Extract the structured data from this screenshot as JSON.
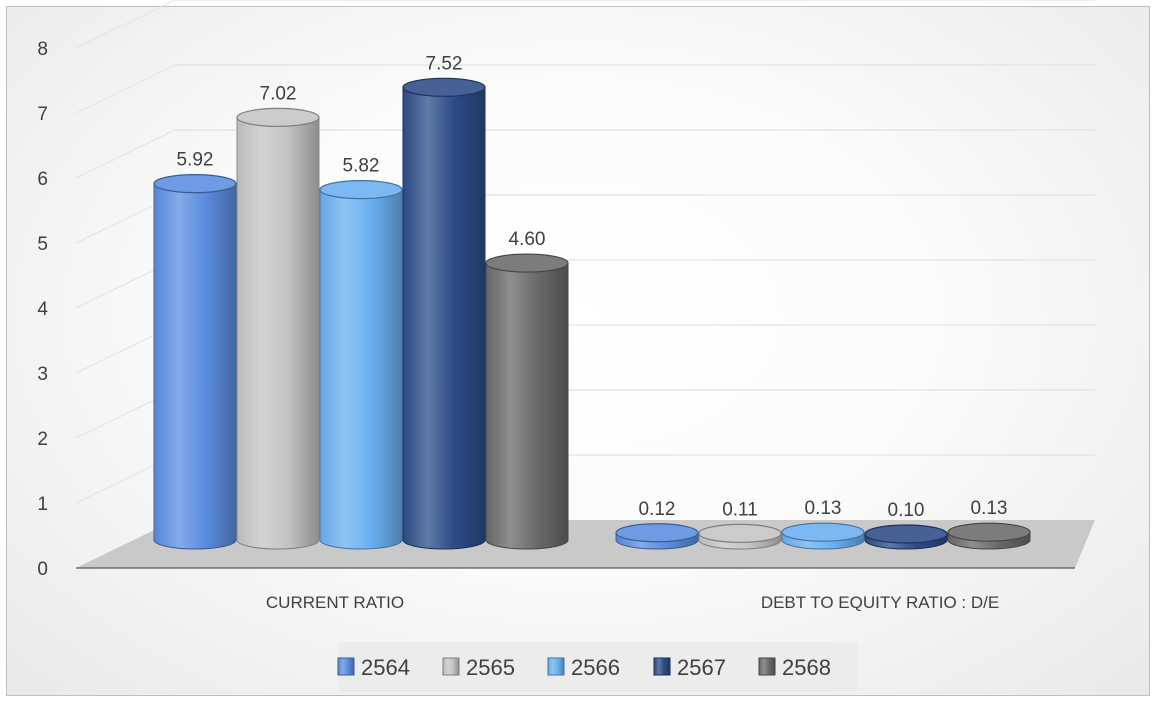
{
  "chart_data": {
    "type": "bar",
    "style": "3d-cylinder",
    "title": "",
    "xlabel": "",
    "ylabel": "",
    "ylim": [
      0,
      8
    ],
    "yticks": [
      "0",
      "1",
      "2",
      "3",
      "4",
      "5",
      "6",
      "7",
      "8"
    ],
    "grid": true,
    "legend_position": "bottom",
    "categories": [
      "CURRENT RATIO",
      "DEBT TO EQUITY RATIO : D/E"
    ],
    "series": [
      {
        "name": "2564",
        "color": "#5b8de0",
        "values": [
          5.92,
          0.12
        ],
        "labels": [
          "5.92",
          "0.12"
        ]
      },
      {
        "name": "2565",
        "color": "#c4c4c4",
        "values": [
          7.02,
          0.11
        ],
        "labels": [
          "7.02",
          "0.11"
        ]
      },
      {
        "name": "2566",
        "color": "#6ab0f0",
        "values": [
          5.82,
          0.13
        ],
        "labels": [
          "5.82",
          "0.13"
        ]
      },
      {
        "name": "2567",
        "color": "#2c4c88",
        "values": [
          7.52,
          0.1
        ],
        "labels": [
          "7.52",
          "0.10"
        ]
      },
      {
        "name": "2568",
        "color": "#6a6a6a",
        "values": [
          4.6,
          0.13
        ],
        "labels": [
          "4.60",
          "0.13"
        ]
      }
    ]
  }
}
